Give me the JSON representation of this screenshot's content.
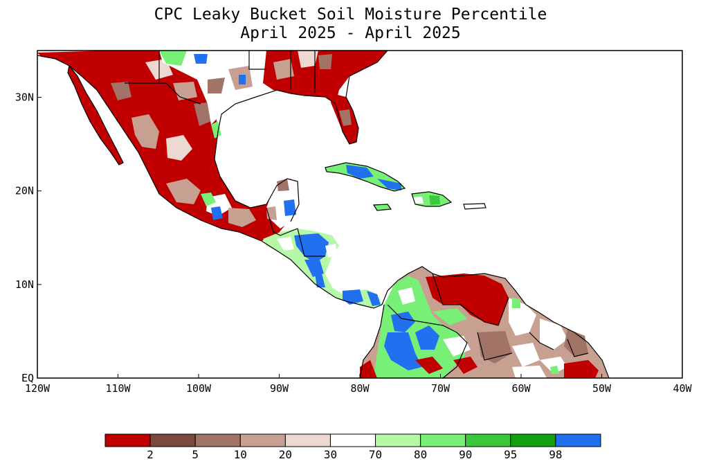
{
  "title": {
    "line1": "CPC Leaky Bucket Soil Moisture Percentile",
    "line2": "April 2025 - April 2025"
  },
  "map": {
    "lon_range": [
      -120,
      -40
    ],
    "lat_range": [
      0,
      35
    ],
    "lon_ticks": [
      {
        "value": -120,
        "label": "120W"
      },
      {
        "value": -110,
        "label": "110W"
      },
      {
        "value": -100,
        "label": "100W"
      },
      {
        "value": -90,
        "label": "90W"
      },
      {
        "value": -80,
        "label": "80W"
      },
      {
        "value": -70,
        "label": "70W"
      },
      {
        "value": -60,
        "label": "60W"
      },
      {
        "value": -50,
        "label": "50W"
      },
      {
        "value": -40,
        "label": "40W"
      }
    ],
    "lat_ticks": [
      {
        "value": 0,
        "label": "EQ"
      },
      {
        "value": 10,
        "label": "10N"
      },
      {
        "value": 20,
        "label": "20N"
      },
      {
        "value": 30,
        "label": "30N"
      }
    ],
    "ocean_color": "#ffffff"
  },
  "colorbar": {
    "colors": [
      "#c00000",
      "#7a4a40",
      "#a27468",
      "#c8a092",
      "#eed8d2",
      "#ffffff",
      "#b4f8a8",
      "#78f078",
      "#3cc83c",
      "#10a010",
      "#2070f0"
    ],
    "labels": [
      "2",
      "5",
      "10",
      "20",
      "30",
      "70",
      "80",
      "90",
      "95",
      "98"
    ]
  }
}
